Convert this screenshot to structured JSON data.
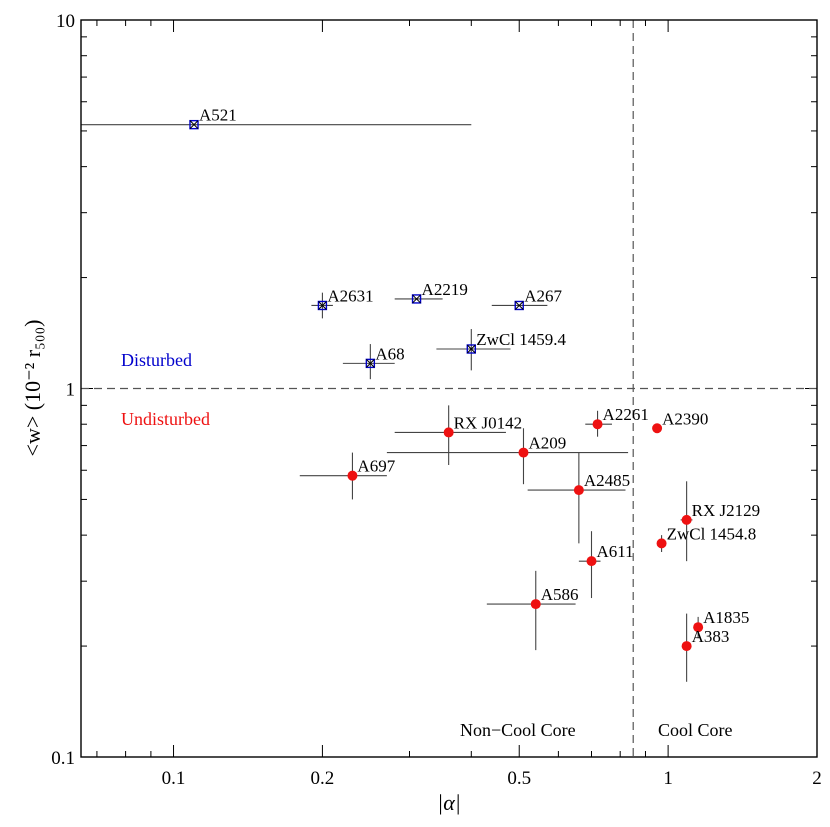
{
  "chart_data": {
    "type": "scatter",
    "title": "",
    "xlabel": "|α|",
    "ylabel": "<w> (10⁻² r₅₀₀)",
    "xscale": "log",
    "yscale": "log",
    "xlim": [
      0.065,
      2
    ],
    "ylim": [
      0.1,
      10
    ],
    "x_ticks": [
      {
        "value": 0.1,
        "label": "0.1"
      },
      {
        "value": 0.2,
        "label": "0.2"
      },
      {
        "value": 0.5,
        "label": "0.5"
      },
      {
        "value": 1,
        "label": "1"
      },
      {
        "value": 2,
        "label": "2"
      }
    ],
    "y_ticks": [
      {
        "value": 0.1,
        "label": "0.1"
      },
      {
        "value": 1,
        "label": "1"
      },
      {
        "value": 10,
        "label": "10"
      }
    ],
    "reference_lines": {
      "vertical_x": 0.85,
      "horizontal_y": 1.0
    },
    "region_labels": {
      "disturbed": "Disturbed",
      "undisturbed": "Undisturbed",
      "non_cool_core": "Non−Cool Core",
      "cool_core": "Cool Core"
    },
    "colors": {
      "disturbed": "#0000cc",
      "undisturbed": "#ee1111",
      "lines": "#444444"
    },
    "series": [
      {
        "name": "Disturbed",
        "marker": "x-square",
        "points": [
          {
            "label": "A521",
            "x": 0.11,
            "y": 5.2,
            "xerr": [
              0.065,
              0.4
            ],
            "yerr": null
          },
          {
            "label": "A2631",
            "x": 0.2,
            "y": 1.68,
            "xerr": [
              0.19,
              0.21
            ],
            "yerr": [
              1.55,
              1.82
            ]
          },
          {
            "label": "A2219",
            "x": 0.31,
            "y": 1.75,
            "xerr": [
              0.28,
              0.35
            ],
            "yerr": null
          },
          {
            "label": "A267",
            "x": 0.5,
            "y": 1.68,
            "xerr": [
              0.44,
              0.57
            ],
            "yerr": null
          },
          {
            "label": "ZwCl 1459.4",
            "x": 0.4,
            "y": 1.28,
            "xerr": [
              0.34,
              0.48
            ],
            "yerr": [
              1.12,
              1.45
            ]
          },
          {
            "label": "A68",
            "x": 0.25,
            "y": 1.17,
            "xerr": [
              0.22,
              0.28
            ],
            "yerr": [
              1.06,
              1.32
            ]
          }
        ]
      },
      {
        "name": "Undisturbed",
        "marker": "circle",
        "points": [
          {
            "label": "RX J0142",
            "x": 0.36,
            "y": 0.76,
            "xerr": [
              0.28,
              0.47
            ],
            "yerr": [
              0.62,
              0.9
            ]
          },
          {
            "label": "A2261",
            "x": 0.72,
            "y": 0.8,
            "xerr": [
              0.68,
              0.77
            ],
            "yerr": [
              0.74,
              0.87
            ]
          },
          {
            "label": "A2390",
            "x": 0.95,
            "y": 0.78,
            "xerr": null,
            "yerr": null
          },
          {
            "label": "A209",
            "x": 0.51,
            "y": 0.67,
            "xerr": [
              0.27,
              0.83
            ],
            "yerr": [
              0.55,
              0.78
            ]
          },
          {
            "label": "A697",
            "x": 0.23,
            "y": 0.58,
            "xerr": [
              0.18,
              0.27
            ],
            "yerr": [
              0.5,
              0.67
            ]
          },
          {
            "label": "A2485",
            "x": 0.66,
            "y": 0.53,
            "xerr": [
              0.52,
              0.82
            ],
            "yerr": [
              0.38,
              0.67
            ]
          },
          {
            "label": "RX J2129",
            "x": 1.09,
            "y": 0.44,
            "xerr": [
              1.06,
              1.12
            ],
            "yerr": [
              0.34,
              0.56
            ]
          },
          {
            "label": "ZwCl 1454.8",
            "x": 0.97,
            "y": 0.38,
            "xerr": [
              0.95,
              0.99
            ],
            "yerr": [
              0.36,
              0.4
            ]
          },
          {
            "label": "A611",
            "x": 0.7,
            "y": 0.34,
            "xerr": [
              0.66,
              0.73
            ],
            "yerr": [
              0.27,
              0.41
            ]
          },
          {
            "label": "A586",
            "x": 0.54,
            "y": 0.26,
            "xerr": [
              0.43,
              0.65
            ],
            "yerr": [
              0.195,
              0.32
            ]
          },
          {
            "label": "A1835",
            "x": 1.15,
            "y": 0.225,
            "xerr": [
              1.13,
              1.17
            ],
            "yerr": [
              0.21,
              0.24
            ]
          },
          {
            "label": "A383",
            "x": 1.09,
            "y": 0.2,
            "xerr": null,
            "yerr": [
              0.16,
              0.245
            ]
          }
        ]
      }
    ]
  }
}
